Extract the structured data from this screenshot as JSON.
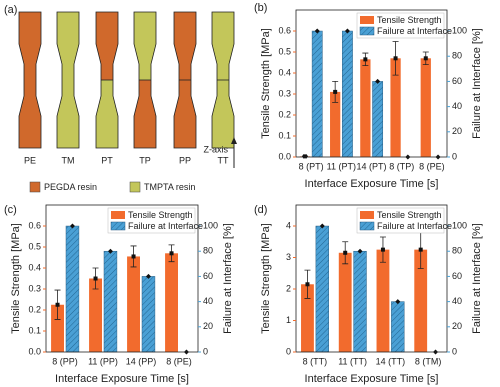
{
  "diagram": {
    "label": "(a)",
    "specimens": [
      {
        "label": "PE",
        "colors": [
          "#d0692c",
          "#d0692c"
        ],
        "interface": false
      },
      {
        "label": "TM",
        "colors": [
          "#c3c65a",
          "#c3c65a"
        ],
        "interface": false
      },
      {
        "label": "PT",
        "colors": [
          "#d0692c",
          "#c3c65a"
        ],
        "interface": true
      },
      {
        "label": "TP",
        "colors": [
          "#c3c65a",
          "#d0692c"
        ],
        "interface": true
      },
      {
        "label": "PP",
        "colors": [
          "#d0692c",
          "#d0692c"
        ],
        "interface": true
      },
      {
        "label": "TT",
        "colors": [
          "#c3c65a",
          "#c3c65a"
        ],
        "interface": true
      }
    ],
    "legend": [
      {
        "label": "PEGDA resin",
        "color": "#d0692c"
      },
      {
        "label": "TMPTA resin",
        "color": "#c3c65a"
      }
    ],
    "axis_label": "Z-axis"
  },
  "chart_data": [
    {
      "type": "bar",
      "panel_label": "(b)",
      "xlabel": "Interface Exposure Time [s]",
      "ylabel": "Tensile Strength [MPa]",
      "y2label": "Failure at Interface [%]",
      "categories": [
        "8 (PT)",
        "11 (PT)",
        "14 (PT)",
        "8 (TP)",
        "8 (PE)"
      ],
      "series": [
        {
          "name": "Tensile Strength",
          "color": "#f26b2d",
          "values": [
            0.003,
            0.31,
            0.465,
            0.47,
            0.47
          ],
          "errors": [
            0.002,
            0.05,
            0.03,
            0.08,
            0.03
          ]
        },
        {
          "name": "Failure at Interface",
          "color": "#4aa0d5",
          "hatch": true,
          "axis": "y2",
          "values": [
            100,
            100,
            60,
            0,
            0
          ]
        }
      ],
      "ylim": [
        0,
        0.7
      ],
      "yticks": [
        {
          "value": 0,
          "label": "0.0"
        },
        0.1,
        0.2,
        0.3,
        0.4,
        0.5,
        0.6
      ],
      "y2lim": [
        0,
        116.7
      ],
      "y2ticks": [
        0,
        20,
        40,
        60,
        80,
        100
      ],
      "legend": "upper right"
    },
    {
      "type": "bar",
      "panel_label": "(c)",
      "xlabel": "Interface Exposure Time [s]",
      "ylabel": "Tensile Strength [MPa]",
      "y2label": "Failure at Interface [%]",
      "categories": [
        "8 (PP)",
        "11 (PP)",
        "14 (PP)",
        "8 (PE)"
      ],
      "series": [
        {
          "name": "Tensile Strength",
          "color": "#f26b2d",
          "values": [
            0.225,
            0.35,
            0.455,
            0.47
          ],
          "errors": [
            0.07,
            0.05,
            0.05,
            0.04
          ]
        },
        {
          "name": "Failure at Interface",
          "color": "#4aa0d5",
          "hatch": true,
          "axis": "y2",
          "values": [
            100,
            80,
            60,
            0
          ]
        }
      ],
      "ylim": [
        0,
        0.7
      ],
      "yticks": [
        {
          "value": 0,
          "label": "0.0"
        },
        0.1,
        0.2,
        0.3,
        0.4,
        0.5,
        0.6
      ],
      "y2lim": [
        0,
        116.7
      ],
      "y2ticks": [
        0,
        20,
        40,
        60,
        80,
        100
      ],
      "legend": "upper right"
    },
    {
      "type": "bar",
      "panel_label": "(d)",
      "xlabel": "Interface Exposure Time [s]",
      "ylabel": "Tensile Strength [MPa]",
      "y2label": "Failure at Interface [%]",
      "categories": [
        "8 (TT)",
        "11 (TT)",
        "14 (TT)",
        "8 (TM)"
      ],
      "series": [
        {
          "name": "Tensile Strength",
          "color": "#f26b2d",
          "values": [
            2.15,
            3.15,
            3.25,
            3.25
          ],
          "errors": [
            0.45,
            0.35,
            0.4,
            0.6
          ]
        },
        {
          "name": "Failure at Interface",
          "color": "#4aa0d5",
          "hatch": true,
          "axis": "y2",
          "values": [
            100,
            80,
            40,
            0
          ]
        }
      ],
      "ylim": [
        0,
        4.667
      ],
      "yticks": [
        0,
        1,
        2,
        3,
        4
      ],
      "y2lim": [
        0,
        116.7
      ],
      "y2ticks": [
        0,
        20,
        40,
        60,
        80,
        100
      ],
      "legend": "upper right"
    }
  ]
}
